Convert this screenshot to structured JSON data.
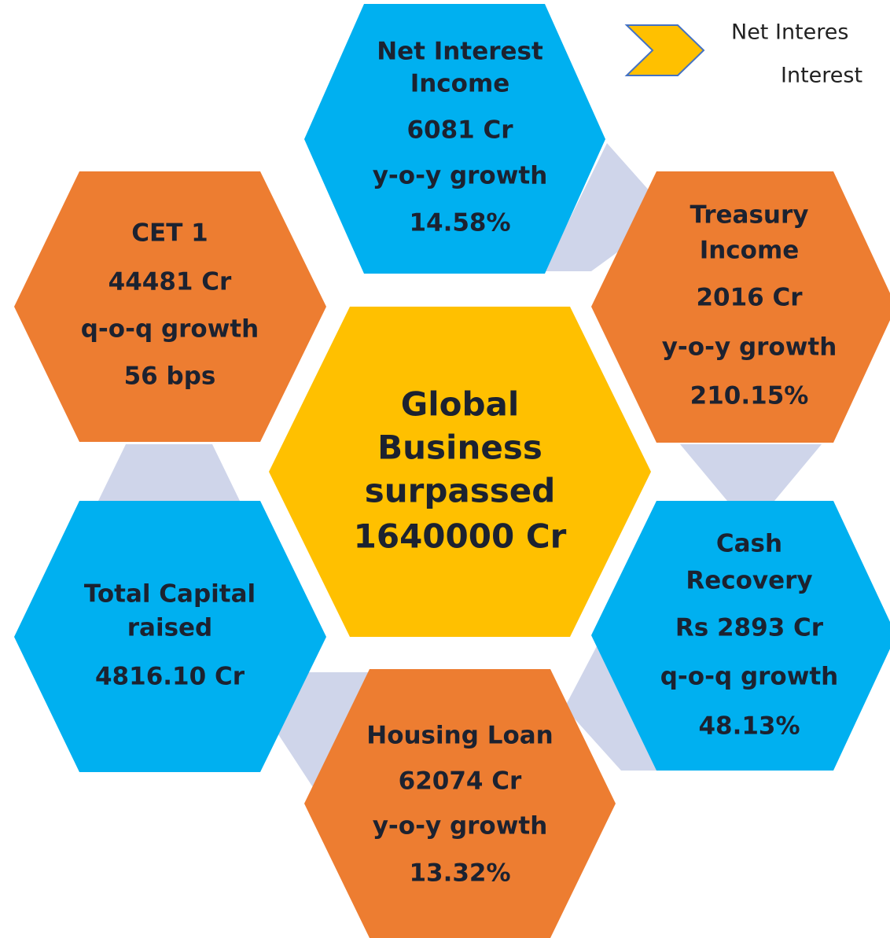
{
  "note": {
    "lines": [
      "Net Interes",
      "Interest"
    ]
  },
  "nodes": [
    {
      "lines": [
        "Net Interest",
        "Income",
        "6081 Cr",
        "y-o-y growth",
        "14.58%"
      ]
    },
    {
      "lines": [
        "CET 1",
        "44481 Cr",
        "q-o-q growth",
        "56 bps"
      ]
    },
    {
      "lines": [
        "Treasury",
        "Income",
        "2016 Cr",
        "y-o-y growth",
        "210.15%"
      ]
    },
    {
      "lines": [
        "Global",
        "Business",
        "surpassed",
        "1640000 Cr"
      ]
    },
    {
      "lines": [
        "Total Capital",
        "raised",
        "4816.10 Cr"
      ]
    },
    {
      "lines": [
        "Cash",
        "Recovery",
        "Rs 2893 Cr",
        "q-o-q growth",
        "48.13%"
      ]
    },
    {
      "lines": [
        "Housing Loan",
        "62074 Cr",
        "y-o-y growth",
        "13.32%"
      ]
    }
  ]
}
